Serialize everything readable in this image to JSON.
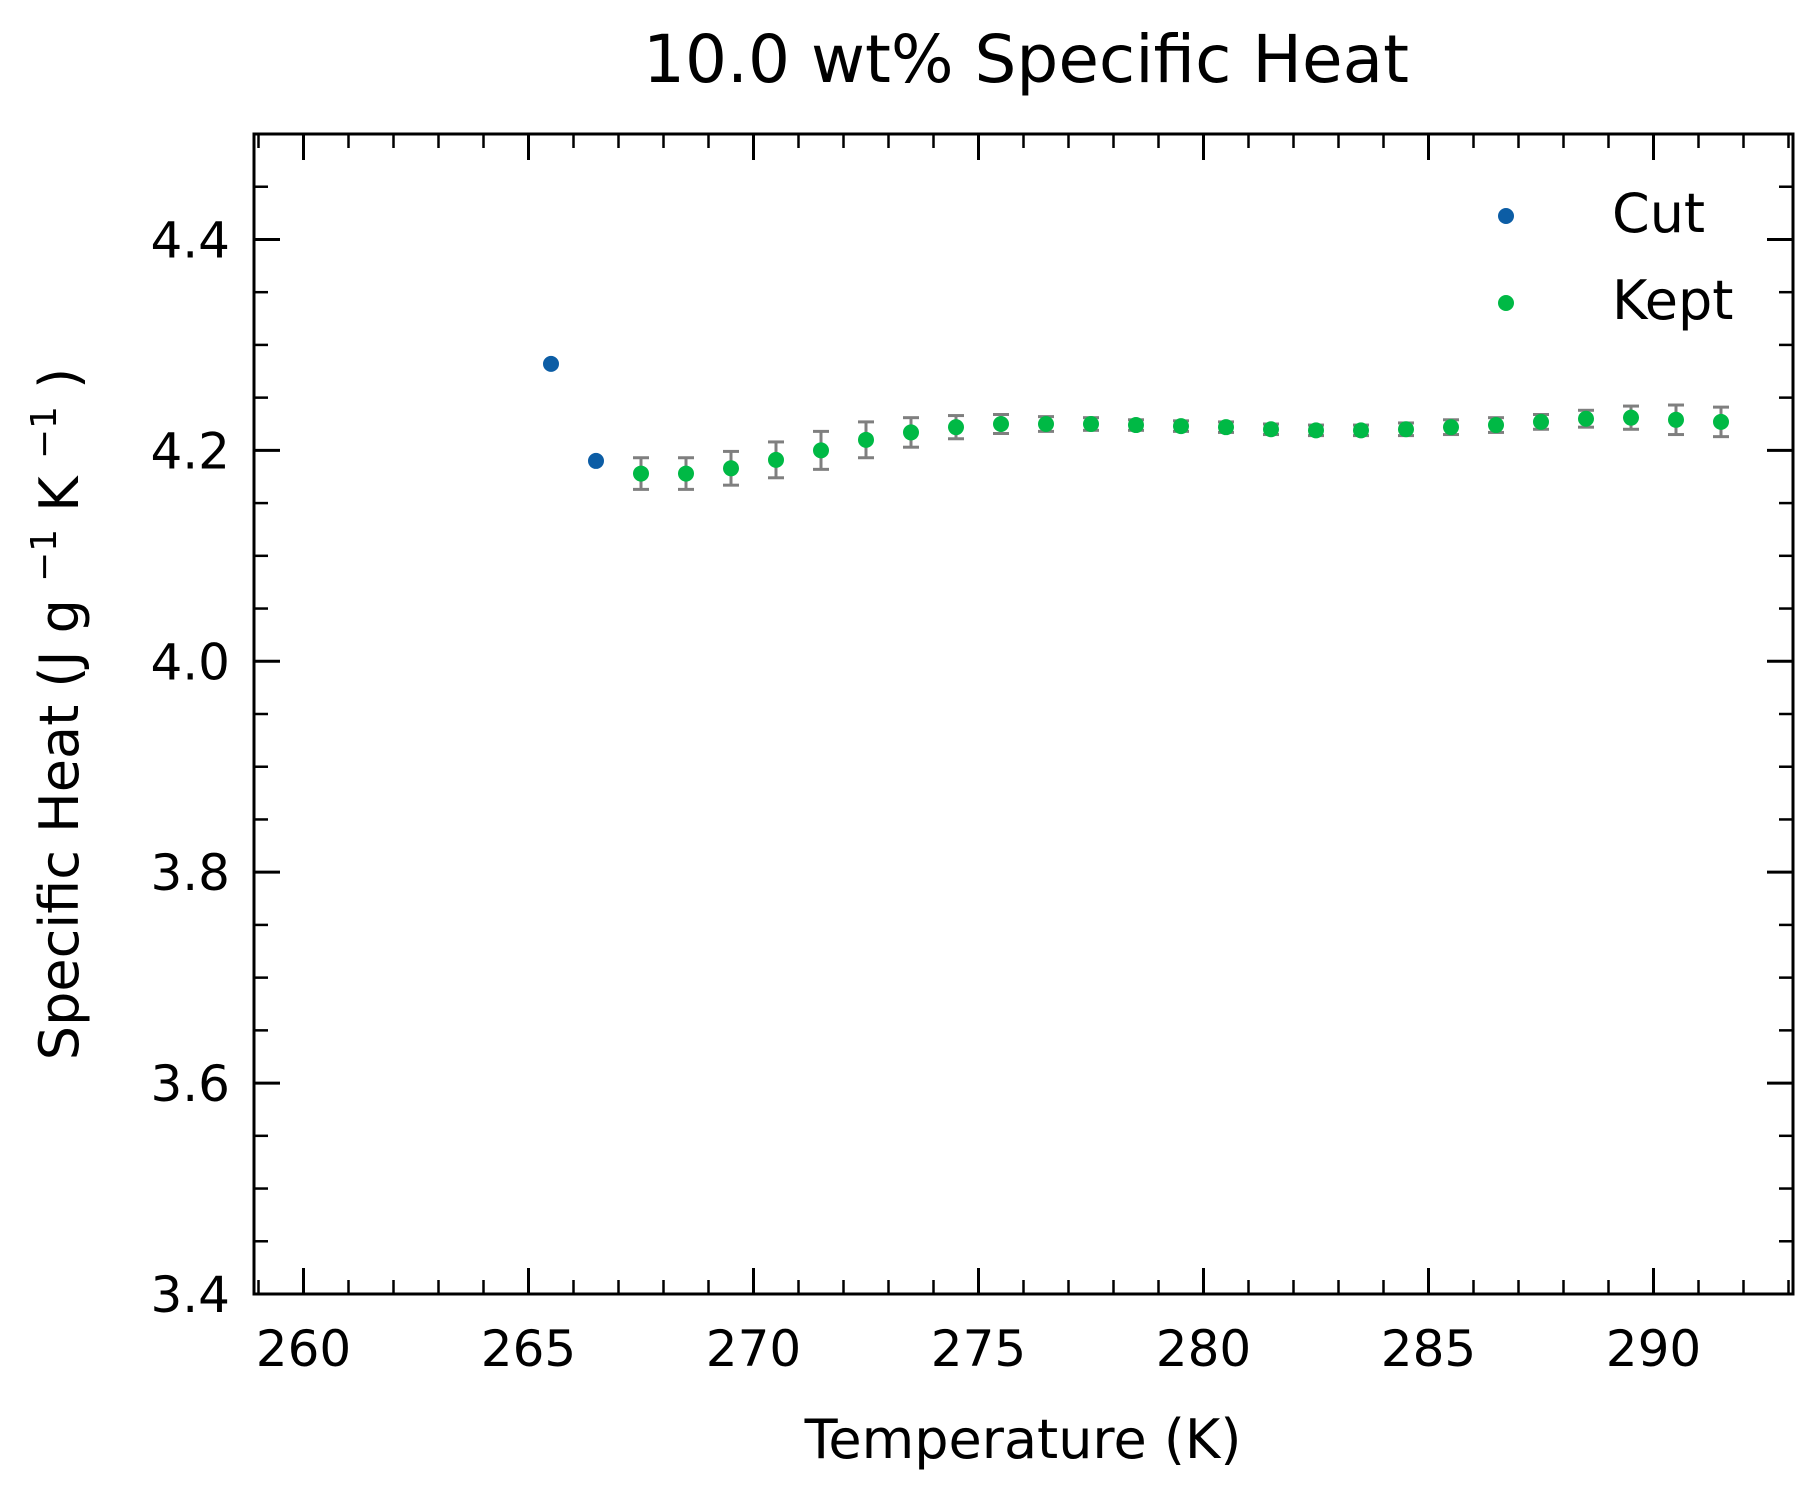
{
  "chart_data": {
    "type": "scatter",
    "title": "10.0 wt% Specific Heat",
    "xlabel": "Temperature (K)",
    "ylabel": {
      "pre": "Specific Heat (J g",
      "sup1": "−1",
      "mid": " K",
      "sup2": "−1",
      "post": ")"
    },
    "xlim": [
      258.9,
      293.1
    ],
    "ylim": [
      3.4,
      4.5
    ],
    "xticks": [
      260,
      265,
      270,
      275,
      280,
      285,
      290
    ],
    "yticks": [
      3.4,
      3.6,
      3.8,
      4.0,
      4.2,
      4.4
    ],
    "xtick_labels": [
      "260",
      "265",
      "270",
      "275",
      "280",
      "285",
      "290"
    ],
    "ytick_labels": [
      "3.4",
      "3.6",
      "3.8",
      "4.0",
      "4.2",
      "4.4"
    ],
    "legend_position": "top-right",
    "grid": false,
    "series": [
      {
        "name": "Cut",
        "color": "#0c5da5",
        "points": [
          {
            "x": 265.5,
            "y": 4.282
          },
          {
            "x": 266.5,
            "y": 4.19
          }
        ]
      },
      {
        "name": "Kept",
        "color": "#00b945",
        "error_color": "#7f7f7f",
        "points": [
          {
            "x": 267.5,
            "y": 4.178,
            "err": 0.015
          },
          {
            "x": 268.5,
            "y": 4.178,
            "err": 0.015
          },
          {
            "x": 269.5,
            "y": 4.183,
            "err": 0.016
          },
          {
            "x": 270.5,
            "y": 4.191,
            "err": 0.017
          },
          {
            "x": 271.5,
            "y": 4.2,
            "err": 0.018
          },
          {
            "x": 272.5,
            "y": 4.21,
            "err": 0.017
          },
          {
            "x": 273.5,
            "y": 4.217,
            "err": 0.014
          },
          {
            "x": 274.5,
            "y": 4.222,
            "err": 0.011
          },
          {
            "x": 275.5,
            "y": 4.225,
            "err": 0.009
          },
          {
            "x": 276.5,
            "y": 4.225,
            "err": 0.007
          },
          {
            "x": 277.5,
            "y": 4.225,
            "err": 0.006
          },
          {
            "x": 278.5,
            "y": 4.224,
            "err": 0.005
          },
          {
            "x": 279.5,
            "y": 4.223,
            "err": 0.005
          },
          {
            "x": 280.5,
            "y": 4.222,
            "err": 0.005
          },
          {
            "x": 281.5,
            "y": 4.22,
            "err": 0.005
          },
          {
            "x": 282.5,
            "y": 4.219,
            "err": 0.005
          },
          {
            "x": 283.5,
            "y": 4.219,
            "err": 0.005
          },
          {
            "x": 284.5,
            "y": 4.22,
            "err": 0.006
          },
          {
            "x": 285.5,
            "y": 4.222,
            "err": 0.007
          },
          {
            "x": 286.5,
            "y": 4.224,
            "err": 0.007
          },
          {
            "x": 287.5,
            "y": 4.227,
            "err": 0.007
          },
          {
            "x": 288.5,
            "y": 4.23,
            "err": 0.008
          },
          {
            "x": 289.5,
            "y": 4.231,
            "err": 0.011
          },
          {
            "x": 290.5,
            "y": 4.229,
            "err": 0.014
          },
          {
            "x": 291.5,
            "y": 4.227,
            "err": 0.014
          }
        ]
      }
    ]
  }
}
